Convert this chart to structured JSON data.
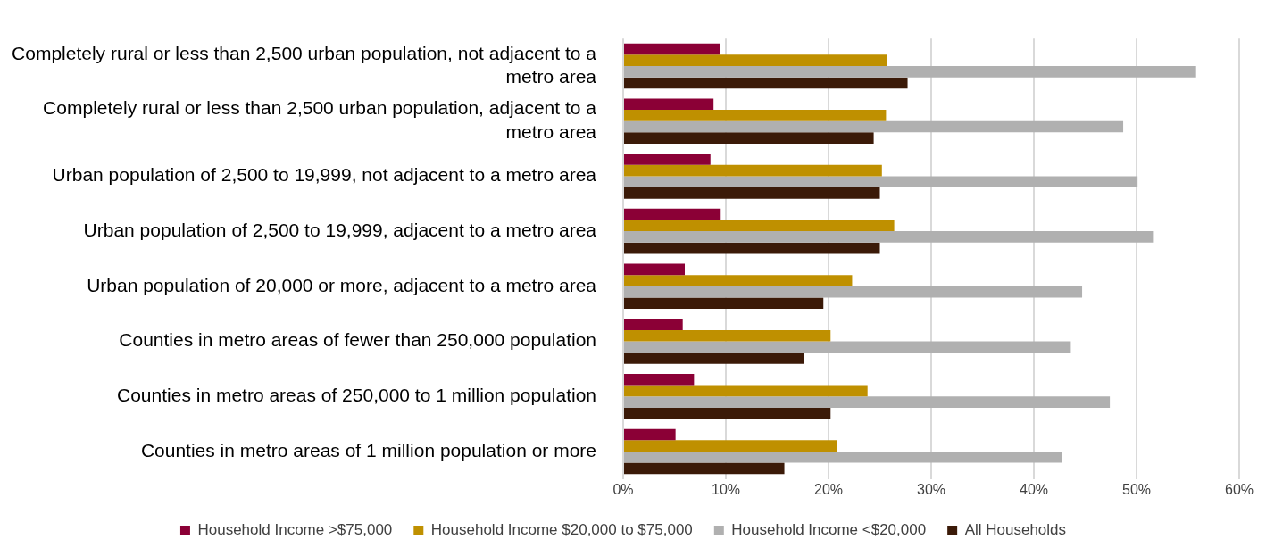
{
  "chart_data": {
    "type": "bar",
    "orientation": "horizontal",
    "categories": [
      "Completely rural or less than 2,500 urban population, not adjacent to a metro area",
      "Completely rural or less than 2,500 urban population, adjacent to a metro area",
      "Urban population of 2,500 to 19,999, not adjacent to a metro area",
      "Urban population of 2,500 to 19,999, adjacent to a metro area",
      "Urban population of 20,000 or more, adjacent to a metro area",
      "Counties in metro areas of fewer than 250,000 population",
      "Counties in metro areas of 250,000 to 1 million population",
      "Counties in metro areas of 1 million population or more"
    ],
    "series": [
      {
        "name": "Household Income >$75,000",
        "color": "#8b0036",
        "values": [
          9.4,
          8.8,
          8.5,
          9.5,
          6.0,
          5.8,
          6.9,
          5.1
        ]
      },
      {
        "name": "Household Income $20,000 to $75,000",
        "color": "#bf9000",
        "values": [
          25.7,
          25.6,
          25.2,
          26.4,
          22.3,
          20.2,
          23.8,
          20.8
        ]
      },
      {
        "name": "Household Income <$20,000",
        "color": "#b0b0b0",
        "values": [
          55.8,
          48.7,
          50.1,
          51.6,
          44.7,
          43.6,
          47.4,
          42.7
        ]
      },
      {
        "name": "All Households",
        "color": "#3b1a08",
        "values": [
          27.7,
          24.4,
          25.0,
          25.0,
          19.5,
          17.6,
          20.2,
          15.7
        ]
      }
    ],
    "xlim": [
      0,
      60
    ],
    "xticks": [
      {
        "value": 0,
        "label": "0%"
      },
      {
        "value": 10,
        "label": "10%"
      },
      {
        "value": 20,
        "label": "20%"
      },
      {
        "value": 30,
        "label": "30%"
      },
      {
        "value": 40,
        "label": "40%"
      },
      {
        "value": 50,
        "label": "50%"
      },
      {
        "value": 60,
        "label": "60%"
      }
    ],
    "grid": "x",
    "legend": "bottom"
  }
}
